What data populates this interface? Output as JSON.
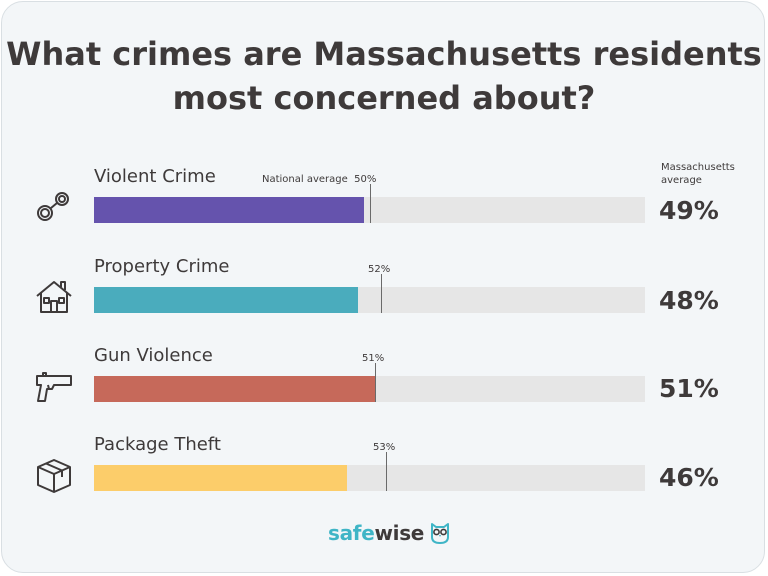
{
  "title": "What crimes are Massachusetts residents most concerned about?",
  "state_average_header": "Massachusetts average",
  "national_average_label": "National average",
  "brand": {
    "part1": "safe",
    "part2": "wise"
  },
  "colors": {
    "violent": "#6553ad",
    "property": "#4aacbd",
    "gun": "#c6695a",
    "package": "#fccd6a",
    "track": "#e6e6e6",
    "text": "#3e3a3a"
  },
  "rows": [
    {
      "label": "Violent Crime",
      "icon": "handcuffs-icon",
      "national_text": "50%",
      "state_text": "49%"
    },
    {
      "label": "Property Crime",
      "icon": "house-icon",
      "national_text": "52%",
      "state_text": "48%"
    },
    {
      "label": "Gun Violence",
      "icon": "handgun-icon",
      "national_text": "51%",
      "state_text": "51%"
    },
    {
      "label": "Package Theft",
      "icon": "package-icon",
      "national_text": "53%",
      "state_text": "46%"
    }
  ],
  "chart_data": {
    "type": "bar",
    "title": "What crimes are Massachusetts residents most concerned about?",
    "orientation": "horizontal",
    "categories": [
      "Violent Crime",
      "Property Crime",
      "Gun Violence",
      "Package Theft"
    ],
    "series": [
      {
        "name": "Massachusetts average",
        "values": [
          49,
          48,
          51,
          46
        ]
      },
      {
        "name": "National average",
        "values": [
          50,
          52,
          51,
          53
        ]
      }
    ],
    "xlim": [
      0,
      100
    ],
    "unit": "%",
    "grid": false
  }
}
